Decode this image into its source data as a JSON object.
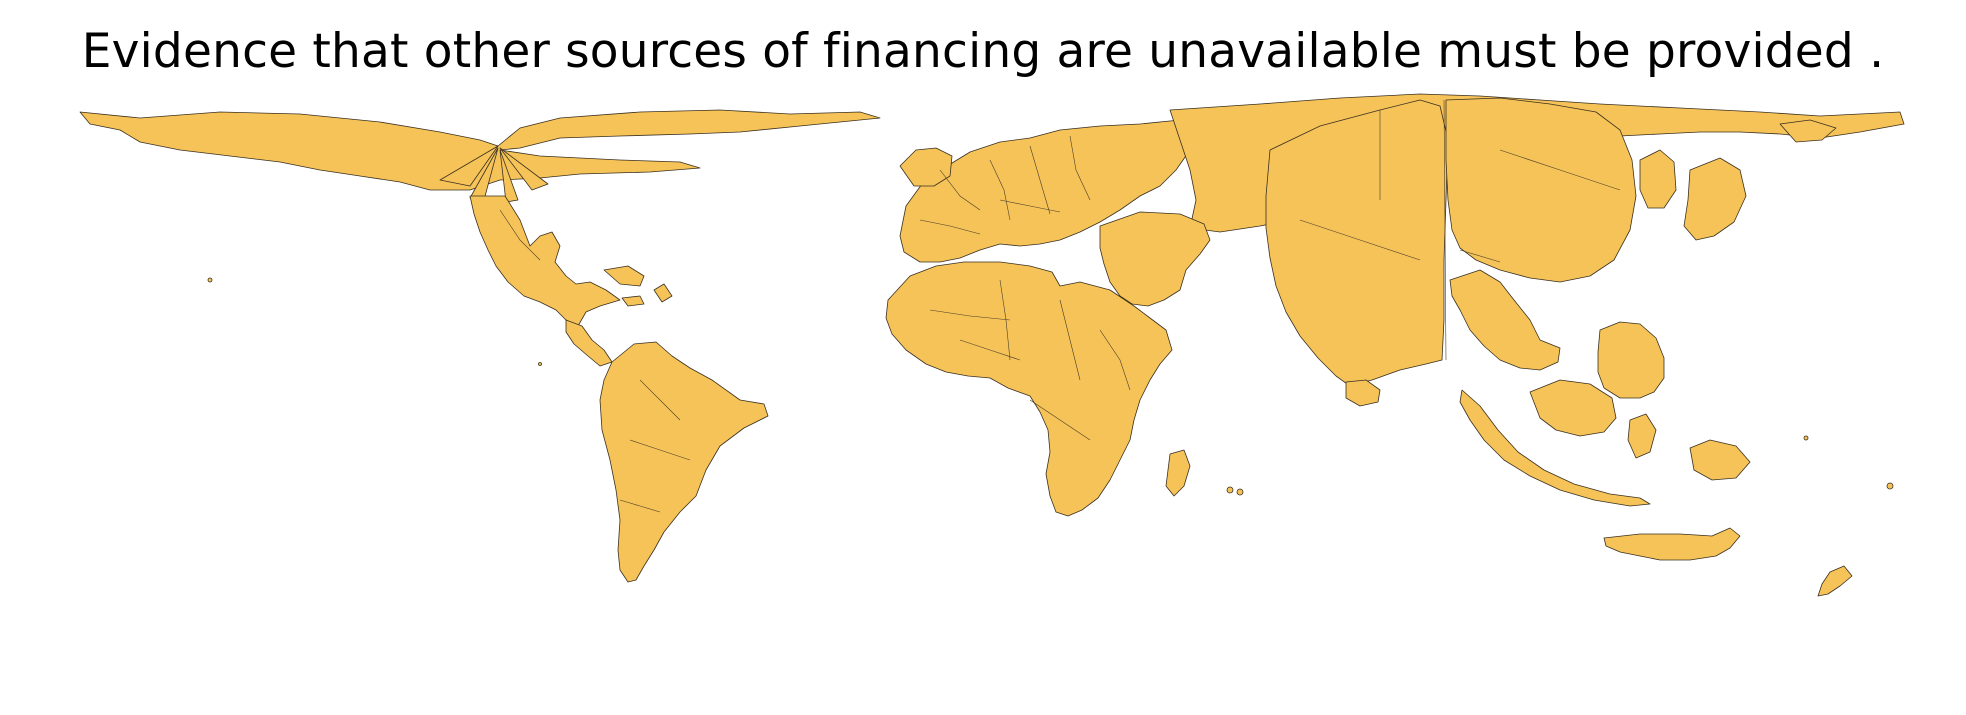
{
  "title": "Evidence that other sources of financing are unavailable must be provided .",
  "map": {
    "type": "cartogram",
    "fill_color": "#f6c358",
    "border_color": "#3a3020",
    "background_color": "#ffffff"
  }
}
